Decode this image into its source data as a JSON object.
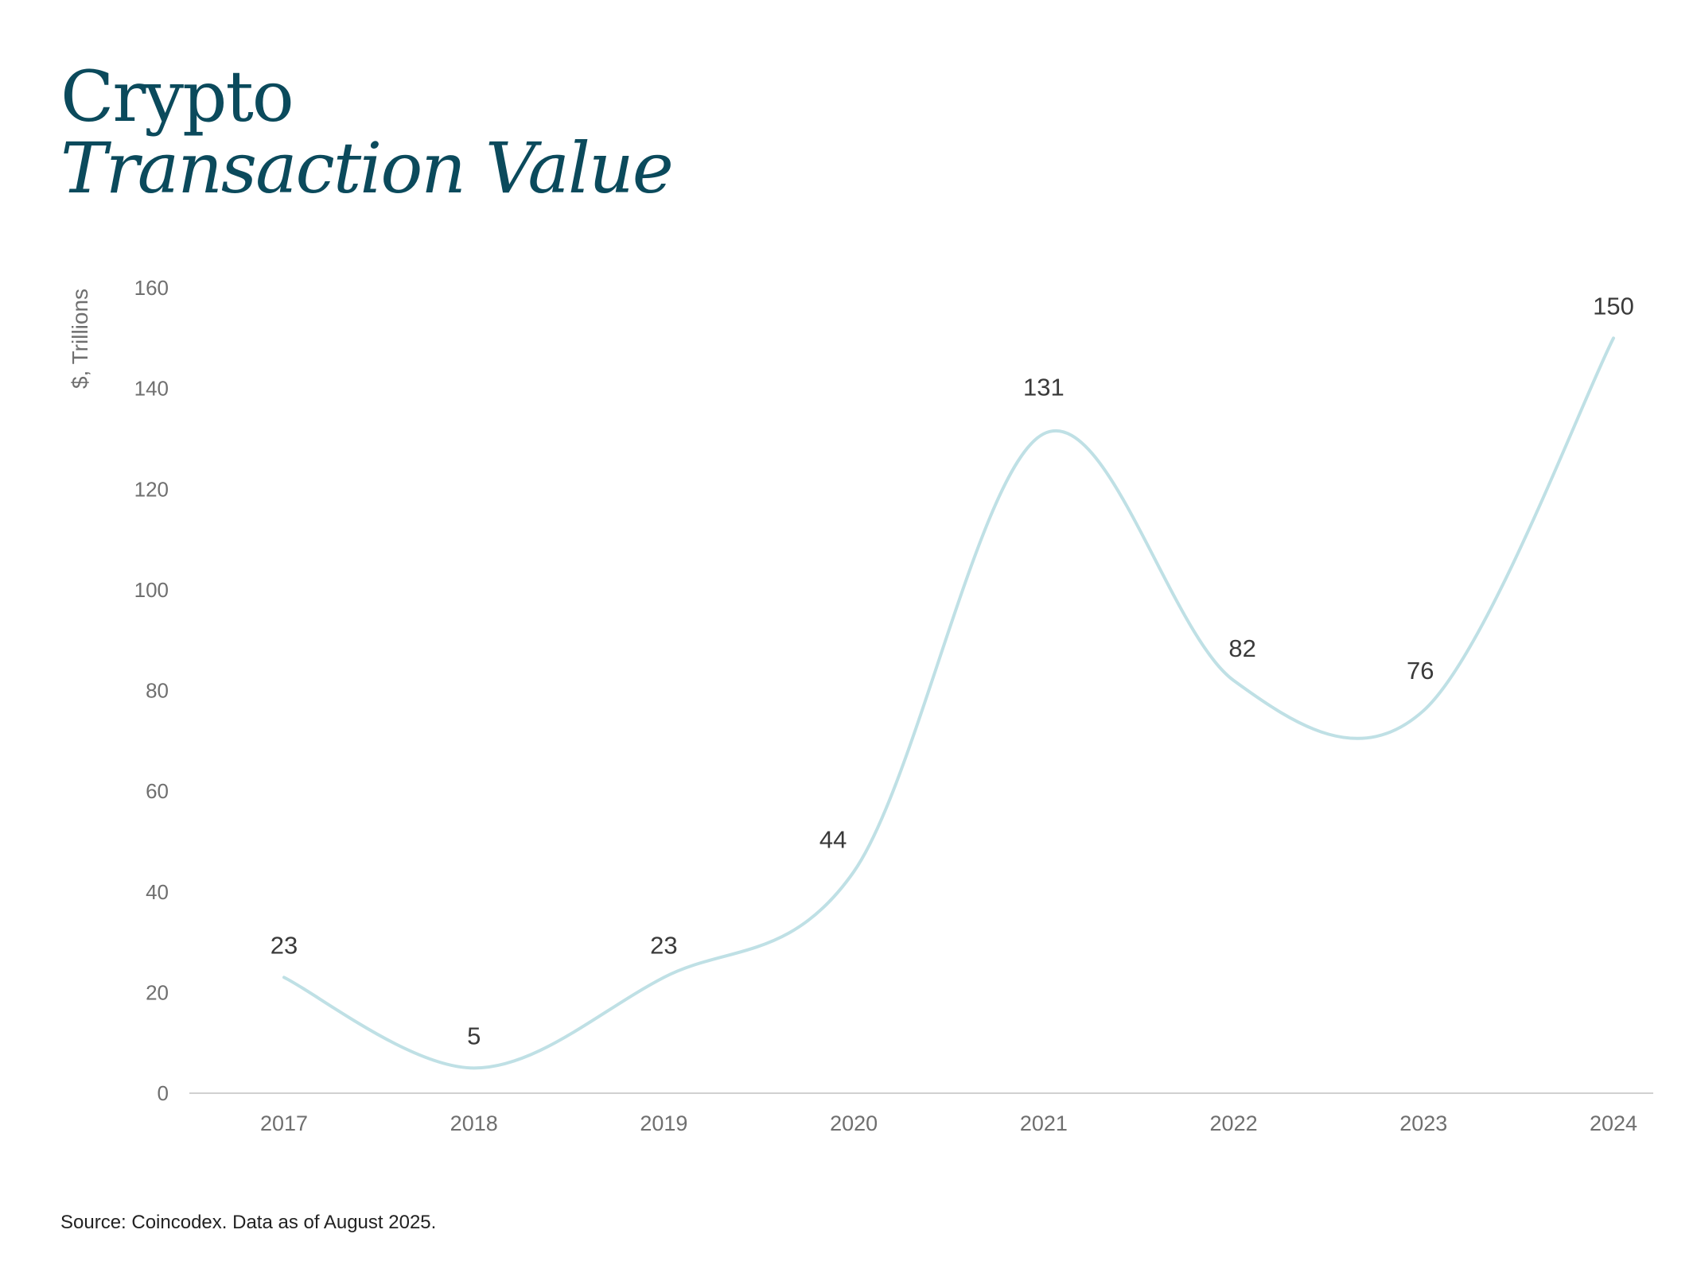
{
  "title": {
    "line1": "Crypto",
    "line2": "Transaction Value"
  },
  "source": "Source: Coincodex. Data as of August 2025.",
  "colors": {
    "title": "#0b4a5c",
    "line": "#bfe0e5",
    "axis_text": "#6f6f6f",
    "label_text": "#3a3a3a",
    "baseline": "#d0d0d0"
  },
  "chart_data": {
    "type": "line",
    "x": [
      "2017",
      "2018",
      "2019",
      "2020",
      "2021",
      "2022",
      "2023",
      "2024"
    ],
    "values": [
      23,
      5,
      23,
      44,
      131,
      82,
      76,
      150
    ],
    "value_labels": [
      "23",
      "5",
      "23",
      "44",
      "131",
      "82",
      "76",
      "150"
    ],
    "ylabel": "$, Trillions",
    "ylim": [
      0,
      160
    ],
    "yticks": [
      0,
      20,
      40,
      60,
      80,
      100,
      120,
      140,
      160
    ],
    "grid": false,
    "legend": "none",
    "smooth": true
  }
}
